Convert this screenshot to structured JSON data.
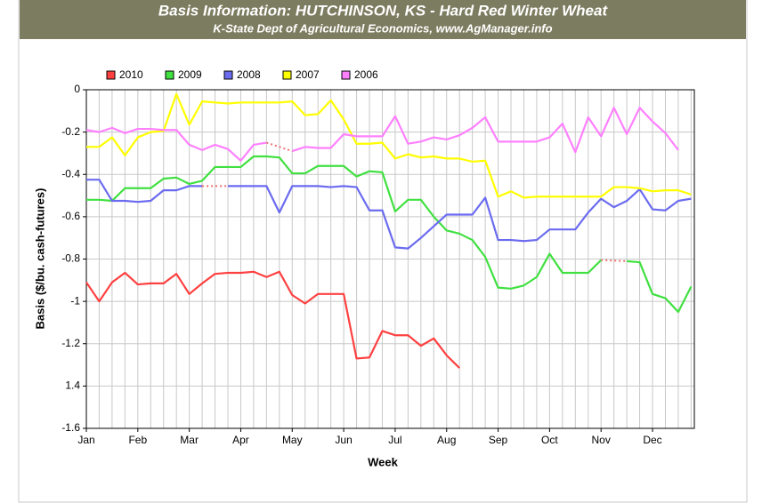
{
  "chart_data": {
    "type": "line",
    "title": "Basis Information: HUTCHINSON, KS - Hard Red Winter Wheat",
    "subtitle": "K-State Dept of Agricultural Economics, www.AgManager.info",
    "xlabel": "Week",
    "ylabel": "Basis ($/bu. cash-futures)",
    "x": [
      0,
      1,
      2,
      3,
      4,
      5,
      6,
      7,
      8,
      9,
      10,
      11,
      12,
      13,
      14,
      15,
      16,
      17,
      18,
      19,
      20,
      21,
      22,
      23,
      24,
      25,
      26,
      27,
      28,
      29,
      30,
      31,
      32,
      33,
      34,
      35,
      36,
      37,
      38,
      39,
      40,
      41,
      42,
      43,
      44,
      45,
      46,
      47
    ],
    "xlim": [
      0,
      47.25
    ],
    "xticks": [
      {
        "value": 0,
        "label": "Jan"
      },
      {
        "value": 4,
        "label": "Feb"
      },
      {
        "value": 8,
        "label": "Mar"
      },
      {
        "value": 12,
        "label": "Apr"
      },
      {
        "value": 16,
        "label": "May"
      },
      {
        "value": 20,
        "label": "Jun"
      },
      {
        "value": 24,
        "label": "Jul"
      },
      {
        "value": 28,
        "label": "Aug"
      },
      {
        "value": 32,
        "label": "Sep"
      },
      {
        "value": 36,
        "label": "Oct"
      },
      {
        "value": 40,
        "label": "Nov"
      },
      {
        "value": 44,
        "label": "Dec"
      }
    ],
    "ylim": [
      -1.6,
      0
    ],
    "yticks": [
      0,
      -0.2,
      -0.4,
      -0.6,
      -0.8,
      -1,
      -1.2,
      {
        "value": -1.4,
        "label": "1.4"
      },
      -1.6
    ],
    "grid": true,
    "legend": "top",
    "gap_line_color": "#f07070",
    "series": [
      {
        "name": "2010",
        "color": "#ff4040",
        "values": [
          -0.91,
          -1.0,
          -0.91,
          -0.865,
          -0.92,
          -0.915,
          -0.915,
          -0.87,
          -0.965,
          -0.915,
          -0.87,
          -0.865,
          -0.865,
          -0.86,
          -0.885,
          -0.86,
          -0.97,
          -1.01,
          -0.965,
          -0.965,
          -0.965,
          -1.27,
          -1.265,
          -1.14,
          -1.16,
          -1.16,
          -1.21,
          -1.175,
          -1.255,
          -1.315,
          null,
          null,
          null,
          null,
          null,
          null,
          null,
          null,
          null,
          null,
          null,
          null,
          null,
          null,
          null,
          null,
          null,
          null
        ]
      },
      {
        "name": "2009",
        "color": "#40e040",
        "values": [
          -0.52,
          -0.52,
          -0.525,
          -0.465,
          -0.465,
          -0.465,
          -0.42,
          -0.415,
          -0.445,
          -0.43,
          -0.365,
          -0.365,
          -0.365,
          -0.315,
          -0.315,
          -0.32,
          -0.395,
          -0.395,
          -0.36,
          -0.36,
          -0.36,
          -0.41,
          -0.385,
          -0.39,
          -0.575,
          -0.52,
          -0.52,
          -0.6,
          -0.665,
          -0.68,
          -0.71,
          -0.79,
          -0.935,
          -0.94,
          -0.925,
          -0.885,
          -0.775,
          -0.865,
          -0.865,
          -0.865,
          -0.805,
          null,
          -0.81,
          -0.815,
          -0.965,
          -0.985,
          -1.05,
          -0.93
        ]
      },
      {
        "name": "2008",
        "color": "#6b6bf0",
        "values": [
          -0.425,
          -0.425,
          -0.525,
          -0.525,
          -0.53,
          -0.525,
          -0.475,
          -0.475,
          -0.455,
          -0.455,
          null,
          -0.455,
          -0.455,
          -0.455,
          -0.455,
          -0.58,
          -0.455,
          -0.455,
          -0.455,
          -0.46,
          -0.455,
          -0.46,
          -0.57,
          -0.57,
          -0.745,
          -0.75,
          -0.7,
          -0.645,
          -0.59,
          -0.59,
          -0.59,
          -0.51,
          -0.71,
          -0.71,
          -0.715,
          -0.71,
          -0.66,
          -0.66,
          -0.66,
          -0.58,
          -0.515,
          -0.555,
          -0.525,
          -0.47,
          -0.565,
          -0.57,
          -0.525,
          -0.515
        ]
      },
      {
        "name": "2007",
        "color": "#ffff00",
        "values": [
          -0.27,
          -0.27,
          -0.225,
          -0.31,
          -0.225,
          -0.2,
          -0.195,
          -0.02,
          -0.165,
          -0.055,
          -0.06,
          -0.065,
          -0.06,
          -0.06,
          -0.06,
          -0.06,
          -0.055,
          -0.12,
          -0.115,
          -0.05,
          -0.14,
          -0.255,
          -0.255,
          -0.25,
          -0.325,
          -0.305,
          -0.32,
          -0.315,
          -0.325,
          -0.325,
          -0.34,
          -0.335,
          -0.505,
          -0.48,
          -0.51,
          -0.505,
          -0.505,
          -0.505,
          -0.505,
          -0.505,
          -0.505,
          -0.46,
          -0.46,
          -0.465,
          -0.48,
          -0.475,
          -0.475,
          -0.495
        ]
      },
      {
        "name": "2006",
        "color": "#ff80ff",
        "values": [
          -0.19,
          -0.2,
          -0.18,
          -0.205,
          -0.185,
          -0.185,
          -0.19,
          -0.19,
          -0.26,
          -0.285,
          -0.26,
          -0.28,
          -0.335,
          -0.26,
          -0.25,
          null,
          -0.29,
          -0.27,
          -0.275,
          -0.275,
          -0.21,
          -0.22,
          -0.22,
          -0.22,
          -0.125,
          -0.255,
          -0.245,
          -0.225,
          -0.235,
          -0.215,
          -0.18,
          -0.13,
          -0.245,
          -0.245,
          -0.245,
          -0.245,
          -0.225,
          -0.16,
          -0.295,
          -0.13,
          -0.22,
          -0.085,
          -0.21,
          -0.085,
          -0.15,
          -0.205,
          -0.285,
          null
        ]
      }
    ]
  }
}
